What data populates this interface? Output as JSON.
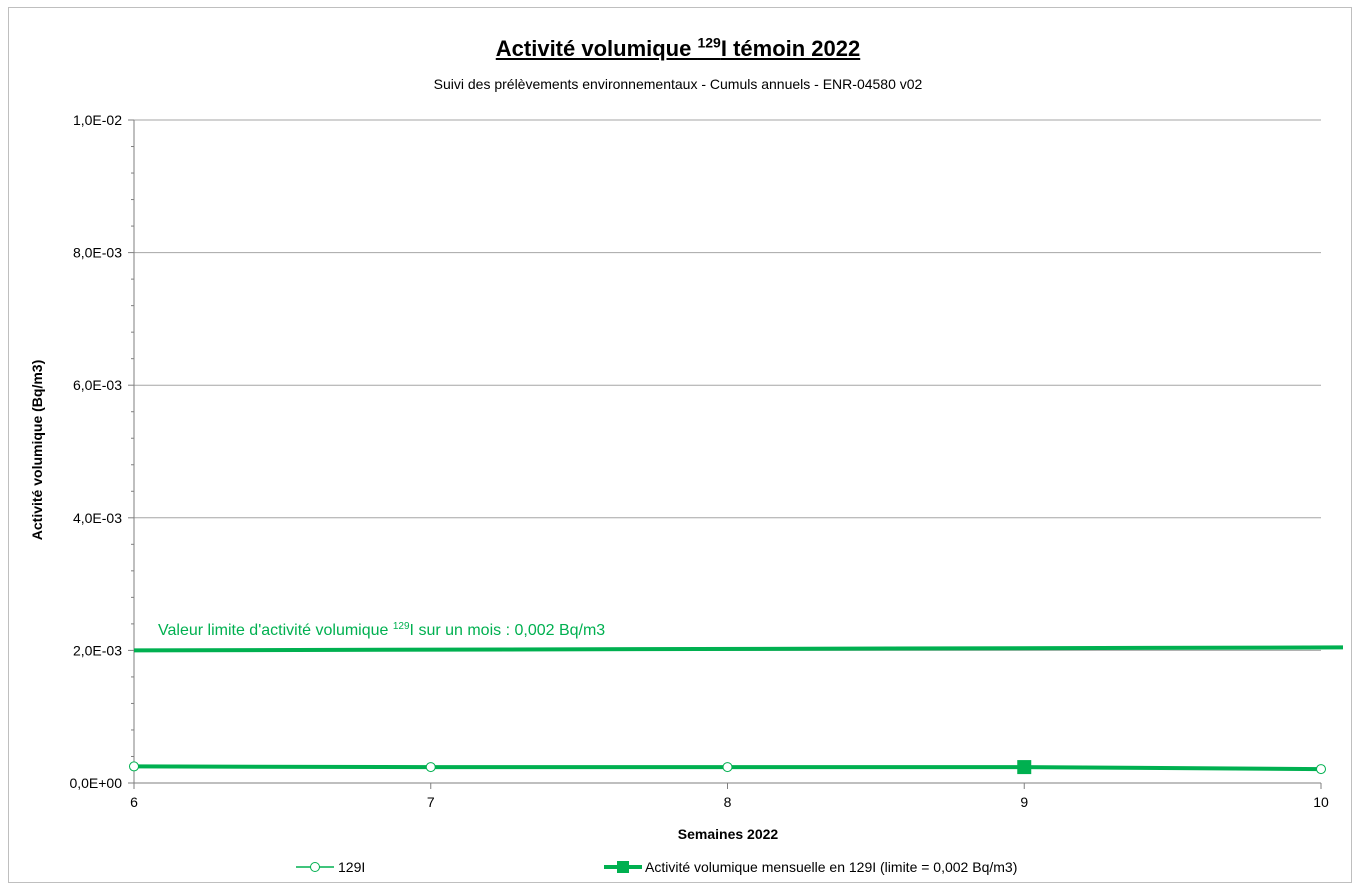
{
  "chart_data": {
    "type": "line",
    "title": "Activité volumique ¹²⁹I témoin 2022",
    "title_parts": {
      "pre": "Activité volumique ",
      "sup": "129",
      "post": "I témoin 2022"
    },
    "subtitle": "Suivi des prélèvements environnementaux - Cumuls annuels - ENR-04580 v02",
    "xlabel": "Semaines 2022",
    "ylabel": "Activité volumique (Bq/m3)",
    "x_ticks": [
      "6",
      "7",
      "8",
      "9",
      "10"
    ],
    "y_ticks": [
      "0,0E+00",
      "2,0E-03",
      "4,0E-03",
      "6,0E-03",
      "8,0E-03",
      "1,0E-02"
    ],
    "xlim": [
      6,
      10
    ],
    "ylim": [
      0,
      0.01
    ],
    "grid": true,
    "legend_position": "bottom",
    "series": [
      {
        "name": "129I",
        "x": [
          6,
          7,
          8,
          9,
          10
        ],
        "y": [
          0.00025,
          0.00024,
          0.00024,
          0.00024,
          0.00021
        ],
        "marker": "open-circle",
        "color": "#00b050"
      },
      {
        "name": "Activité volumique mensuelle en 129I  (limite = 0,002 Bq/m3)",
        "x": [
          9
        ],
        "y": [
          0.00024
        ],
        "marker": "filled-square",
        "color": "#00b050"
      }
    ],
    "limit_line": {
      "y": 0.002,
      "color": "#00b050"
    },
    "annotation": {
      "pre": "Valeur limite d'activité volumique ",
      "sup": "129",
      "post": "I sur un mois : 0,002 Bq/m3"
    }
  }
}
